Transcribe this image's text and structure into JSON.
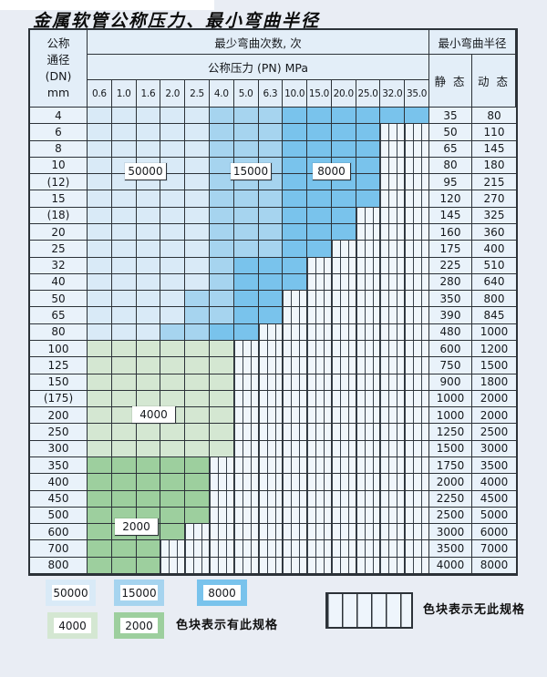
{
  "title": "金属软管公称压力、最小弯曲半径",
  "table": {
    "dn_header_lines": [
      "公称",
      "通径",
      "(DN)",
      "mm"
    ],
    "bend_cycles_header": "最少弯曲次数, 次",
    "pressure_header": "公称压力 (PN) MPa",
    "radius_header": "最小弯曲半径",
    "static_label": "静 态",
    "dynamic_label": "动 态"
  },
  "zone_labels": {
    "z50000": "50000",
    "z15000": "15000",
    "z8000": "8000",
    "z4000": "4000",
    "z2000": "2000"
  },
  "colors": {
    "zone_50000": "#d9eaf7",
    "zone_15000": "#a6d4ef",
    "zone_8000": "#79c3ec",
    "zone_4000": "#d4e7d2",
    "zone_2000": "#9dcf9e",
    "no_spec_bg": "#f0f6fb",
    "grid_line": "#2c3238"
  },
  "legend": {
    "items": [
      {
        "label": "50000",
        "zone": "50000"
      },
      {
        "label": "15000",
        "zone": "15000"
      },
      {
        "label": "8000",
        "zone": "8000"
      },
      {
        "label": "4000",
        "zone": "4000"
      },
      {
        "label": "2000",
        "zone": "2000"
      }
    ],
    "has_spec_note": "色块表示有此规格",
    "no_spec_note": "色块表示无此规格"
  },
  "chart_data": {
    "type": "table",
    "title": "金属软管公称压力、最小弯曲半径",
    "pressure_columns_MPa": [
      "0.6",
      "1.0",
      "1.6",
      "2.0",
      "2.5",
      "4.0",
      "5.0",
      "6.3",
      "10.0",
      "15.0",
      "20.0",
      "25.0",
      "32.0",
      "35.0"
    ],
    "bend_cycle_zones": [
      50000,
      15000,
      8000,
      4000,
      2000
    ],
    "notes": "colored cell = specification exists (shade encodes minimum bending cycles); striped cell = no such specification",
    "rows": [
      {
        "dn": "4",
        "static": "35",
        "dynamic": "80",
        "bands": [
          {
            "cycles": "50000",
            "from": 0,
            "to": 4
          },
          {
            "cycles": "15000",
            "from": 5,
            "to": 7
          },
          {
            "cycles": "8000",
            "from": 8,
            "to": 13
          }
        ]
      },
      {
        "dn": "6",
        "static": "50",
        "dynamic": "110",
        "bands": [
          {
            "cycles": "50000",
            "from": 0,
            "to": 4
          },
          {
            "cycles": "15000",
            "from": 5,
            "to": 7
          },
          {
            "cycles": "8000",
            "from": 8,
            "to": 11
          }
        ]
      },
      {
        "dn": "8",
        "static": "65",
        "dynamic": "145",
        "bands": [
          {
            "cycles": "50000",
            "from": 0,
            "to": 4
          },
          {
            "cycles": "15000",
            "from": 5,
            "to": 7
          },
          {
            "cycles": "8000",
            "from": 8,
            "to": 11
          }
        ]
      },
      {
        "dn": "10",
        "static": "80",
        "dynamic": "180",
        "bands": [
          {
            "cycles": "50000",
            "from": 0,
            "to": 4
          },
          {
            "cycles": "15000",
            "from": 5,
            "to": 7
          },
          {
            "cycles": "8000",
            "from": 8,
            "to": 11
          }
        ]
      },
      {
        "dn": "(12)",
        "static": "95",
        "dynamic": "215",
        "bands": [
          {
            "cycles": "50000",
            "from": 0,
            "to": 4
          },
          {
            "cycles": "15000",
            "from": 5,
            "to": 7
          },
          {
            "cycles": "8000",
            "from": 8,
            "to": 11
          }
        ]
      },
      {
        "dn": "15",
        "static": "120",
        "dynamic": "270",
        "bands": [
          {
            "cycles": "50000",
            "from": 0,
            "to": 4
          },
          {
            "cycles": "15000",
            "from": 5,
            "to": 7
          },
          {
            "cycles": "8000",
            "from": 8,
            "to": 11
          }
        ]
      },
      {
        "dn": "(18)",
        "static": "145",
        "dynamic": "325",
        "bands": [
          {
            "cycles": "50000",
            "from": 0,
            "to": 4
          },
          {
            "cycles": "15000",
            "from": 5,
            "to": 7
          },
          {
            "cycles": "8000",
            "from": 8,
            "to": 10
          }
        ]
      },
      {
        "dn": "20",
        "static": "160",
        "dynamic": "360",
        "bands": [
          {
            "cycles": "50000",
            "from": 0,
            "to": 4
          },
          {
            "cycles": "15000",
            "from": 5,
            "to": 7
          },
          {
            "cycles": "8000",
            "from": 8,
            "to": 10
          }
        ]
      },
      {
        "dn": "25",
        "static": "175",
        "dynamic": "400",
        "bands": [
          {
            "cycles": "50000",
            "from": 0,
            "to": 4
          },
          {
            "cycles": "15000",
            "from": 5,
            "to": 7
          },
          {
            "cycles": "8000",
            "from": 8,
            "to": 9
          }
        ]
      },
      {
        "dn": "32",
        "static": "225",
        "dynamic": "510",
        "bands": [
          {
            "cycles": "50000",
            "from": 0,
            "to": 4
          },
          {
            "cycles": "15000",
            "from": 5,
            "to": 5
          },
          {
            "cycles": "8000",
            "from": 6,
            "to": 8
          }
        ]
      },
      {
        "dn": "40",
        "static": "280",
        "dynamic": "640",
        "bands": [
          {
            "cycles": "50000",
            "from": 0,
            "to": 4
          },
          {
            "cycles": "15000",
            "from": 5,
            "to": 5
          },
          {
            "cycles": "8000",
            "from": 6,
            "to": 8
          }
        ]
      },
      {
        "dn": "50",
        "static": "350",
        "dynamic": "800",
        "bands": [
          {
            "cycles": "50000",
            "from": 0,
            "to": 3
          },
          {
            "cycles": "15000",
            "from": 4,
            "to": 5
          },
          {
            "cycles": "8000",
            "from": 6,
            "to": 7
          }
        ]
      },
      {
        "dn": "65",
        "static": "390",
        "dynamic": "845",
        "bands": [
          {
            "cycles": "50000",
            "from": 0,
            "to": 3
          },
          {
            "cycles": "15000",
            "from": 4,
            "to": 5
          },
          {
            "cycles": "8000",
            "from": 6,
            "to": 7
          }
        ]
      },
      {
        "dn": "80",
        "static": "480",
        "dynamic": "1000",
        "bands": [
          {
            "cycles": "50000",
            "from": 0,
            "to": 2
          },
          {
            "cycles": "15000",
            "from": 3,
            "to": 4
          },
          {
            "cycles": "8000",
            "from": 5,
            "to": 6
          }
        ]
      },
      {
        "dn": "100",
        "static": "600",
        "dynamic": "1200",
        "bands": [
          {
            "cycles": "4000",
            "from": 0,
            "to": 5
          }
        ]
      },
      {
        "dn": "125",
        "static": "750",
        "dynamic": "1500",
        "bands": [
          {
            "cycles": "4000",
            "from": 0,
            "to": 5
          }
        ]
      },
      {
        "dn": "150",
        "static": "900",
        "dynamic": "1800",
        "bands": [
          {
            "cycles": "4000",
            "from": 0,
            "to": 5
          }
        ]
      },
      {
        "dn": "(175)",
        "static": "1000",
        "dynamic": "2000",
        "bands": [
          {
            "cycles": "4000",
            "from": 0,
            "to": 5
          }
        ]
      },
      {
        "dn": "200",
        "static": "1000",
        "dynamic": "2000",
        "bands": [
          {
            "cycles": "4000",
            "from": 0,
            "to": 5
          }
        ]
      },
      {
        "dn": "250",
        "static": "1250",
        "dynamic": "2500",
        "bands": [
          {
            "cycles": "4000",
            "from": 0,
            "to": 5
          }
        ]
      },
      {
        "dn": "300",
        "static": "1500",
        "dynamic": "3000",
        "bands": [
          {
            "cycles": "4000",
            "from": 0,
            "to": 5
          }
        ]
      },
      {
        "dn": "350",
        "static": "1750",
        "dynamic": "3500",
        "bands": [
          {
            "cycles": "2000",
            "from": 0,
            "to": 4
          }
        ]
      },
      {
        "dn": "400",
        "static": "2000",
        "dynamic": "4000",
        "bands": [
          {
            "cycles": "2000",
            "from": 0,
            "to": 4
          }
        ]
      },
      {
        "dn": "450",
        "static": "2250",
        "dynamic": "4500",
        "bands": [
          {
            "cycles": "2000",
            "from": 0,
            "to": 4
          }
        ]
      },
      {
        "dn": "500",
        "static": "2500",
        "dynamic": "5000",
        "bands": [
          {
            "cycles": "2000",
            "from": 0,
            "to": 4
          }
        ]
      },
      {
        "dn": "600",
        "static": "3000",
        "dynamic": "6000",
        "bands": [
          {
            "cycles": "2000",
            "from": 0,
            "to": 3
          }
        ]
      },
      {
        "dn": "700",
        "static": "3500",
        "dynamic": "7000",
        "bands": [
          {
            "cycles": "2000",
            "from": 0,
            "to": 2
          }
        ]
      },
      {
        "dn": "800",
        "static": "4000",
        "dynamic": "8000",
        "bands": [
          {
            "cycles": "2000",
            "from": 0,
            "to": 2
          }
        ]
      }
    ]
  }
}
